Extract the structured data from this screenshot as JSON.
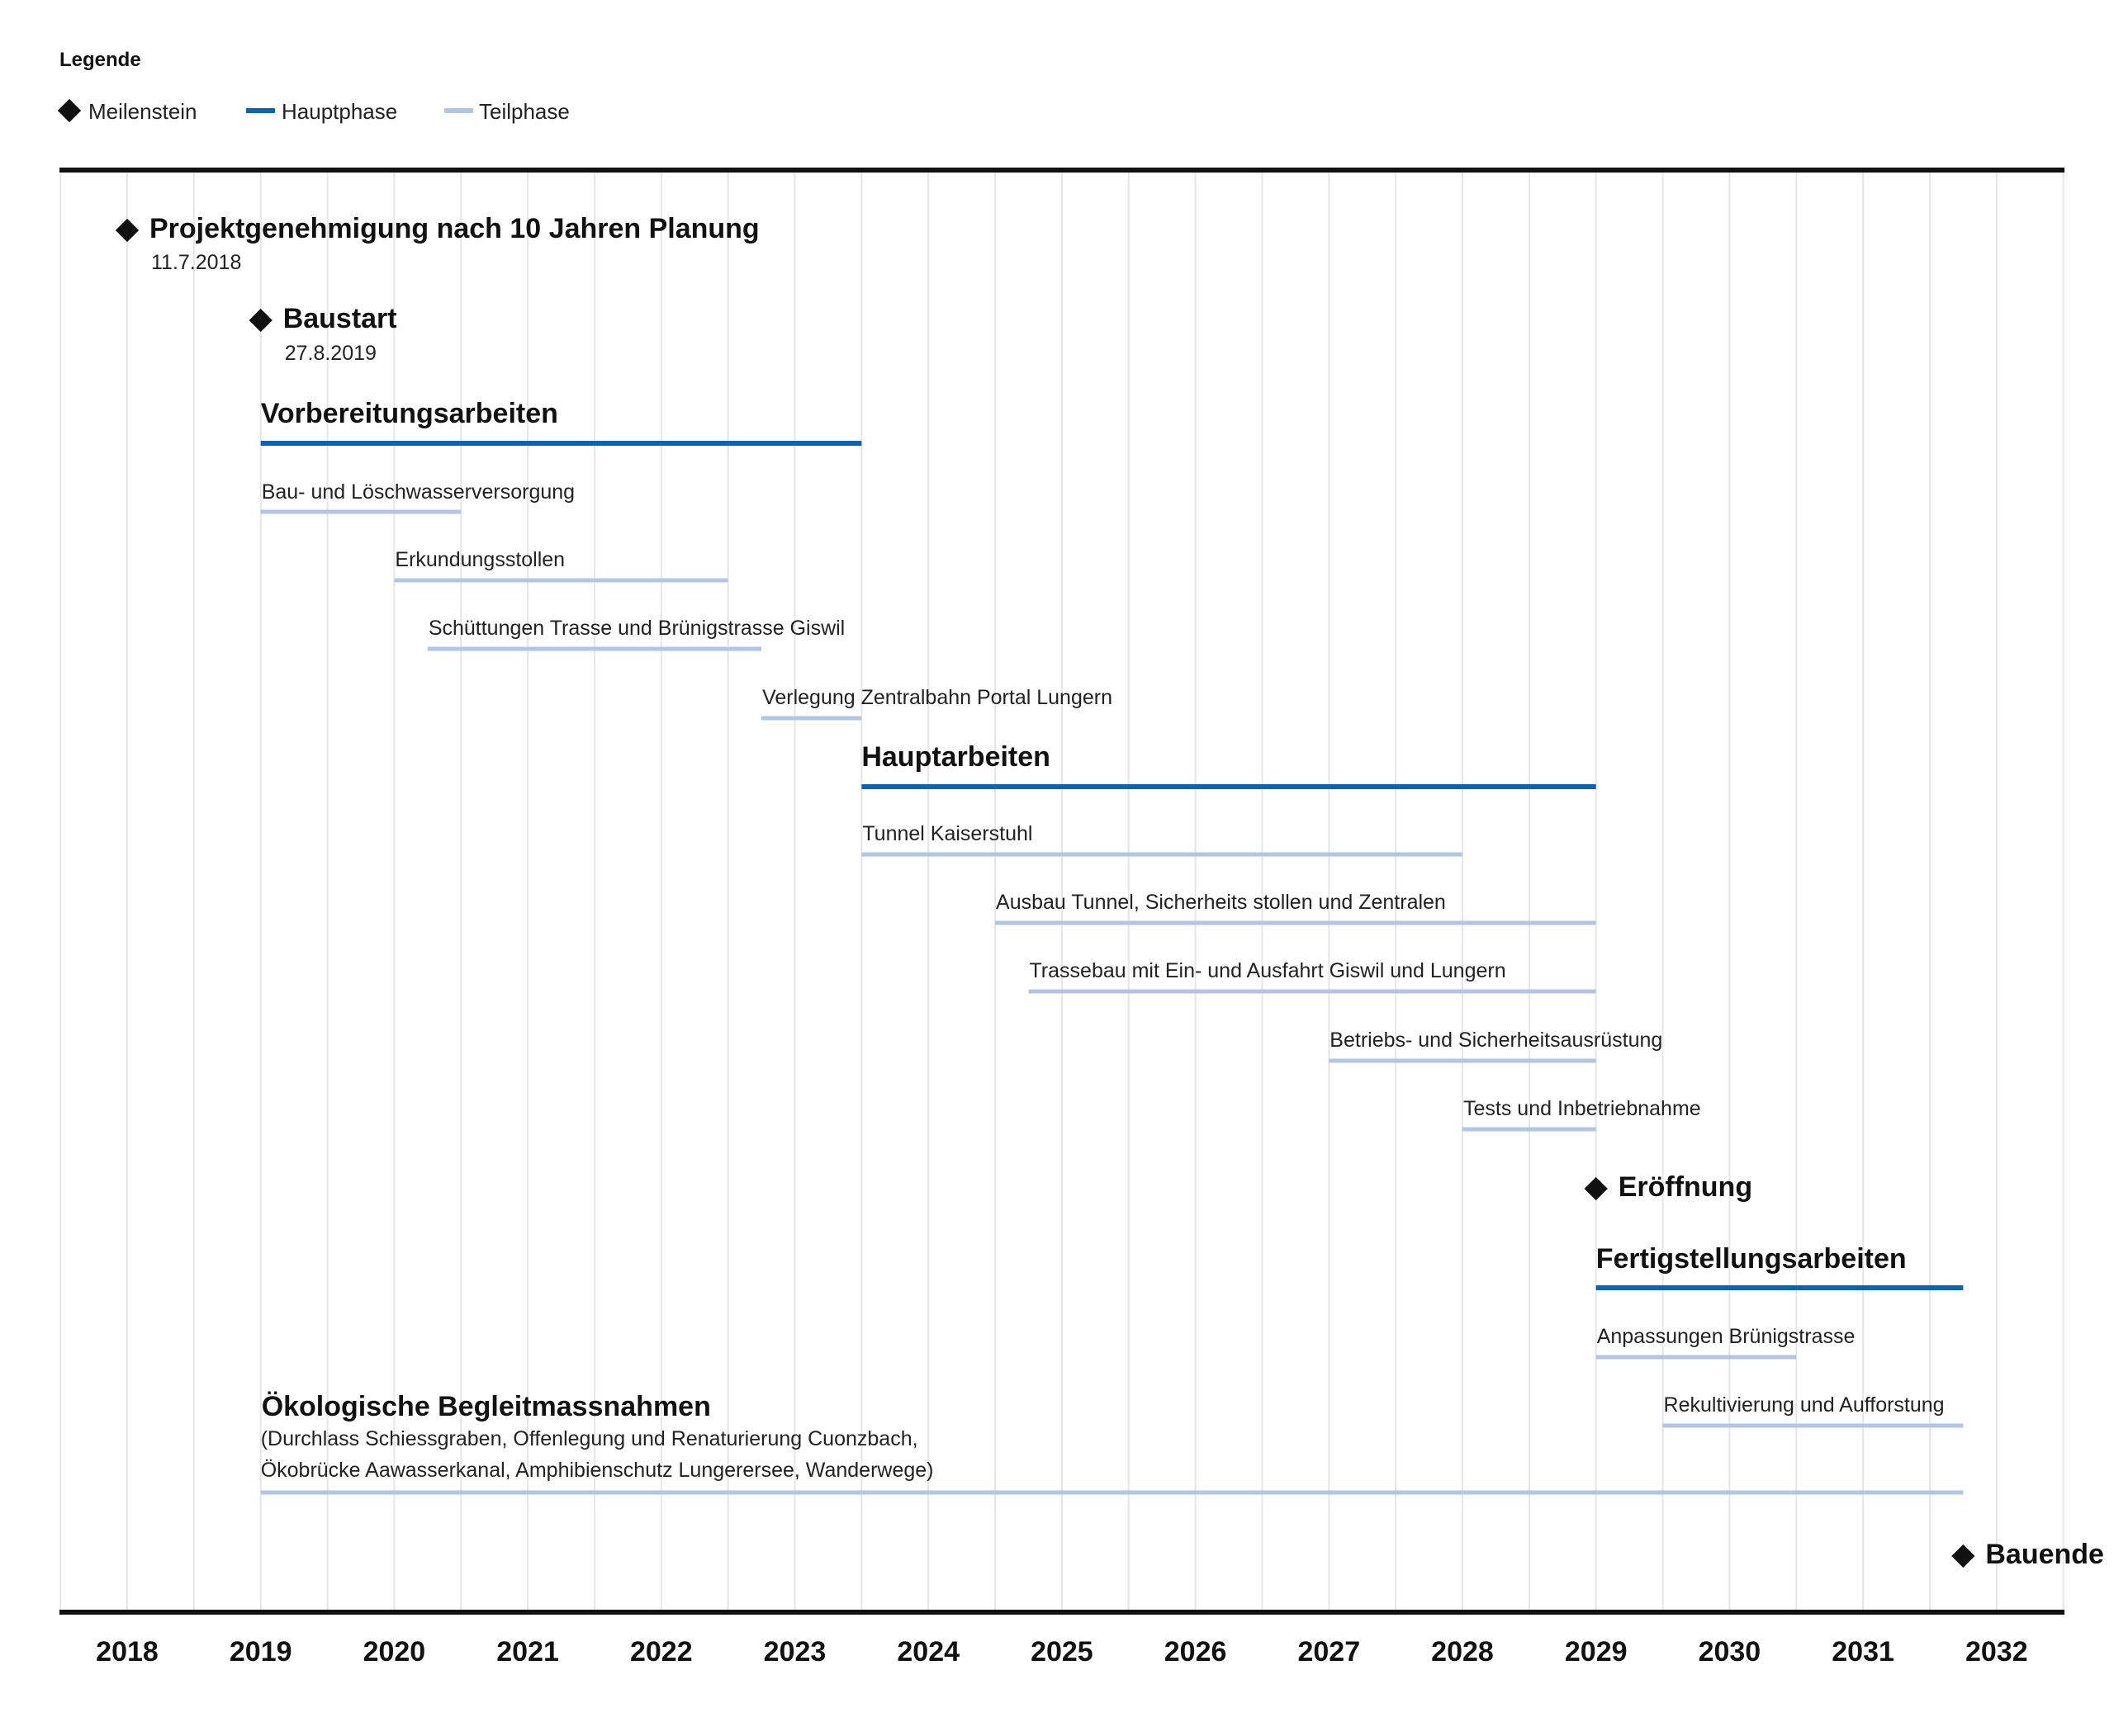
{
  "chart_data": {
    "type": "gantt",
    "legend": {
      "title": "Legende",
      "items": [
        {
          "label": "Meilenstein",
          "kind": "milestone"
        },
        {
          "label": "Hauptphase",
          "kind": "main"
        },
        {
          "label": "Teilphase",
          "kind": "sub"
        }
      ]
    },
    "colors": {
      "main": "#0d63b3",
      "sub": "#b3c5e6",
      "milestone": "#111111",
      "grid": "#e4e6ea",
      "axis": "#111111"
    },
    "x_axis": {
      "ticks": [
        2018,
        2019,
        2020,
        2021,
        2022,
        2023,
        2024,
        2025,
        2026,
        2027,
        2028,
        2029,
        2030,
        2031,
        2032
      ],
      "range": [
        2017.5,
        2032.5
      ]
    },
    "rows": [
      {
        "type": "milestone",
        "label": "Projektgenehmigung nach 10 Jahren Planung",
        "date_label": "11.7.2018",
        "date": 2018.0
      },
      {
        "type": "milestone",
        "label": "Baustart",
        "date_label": "27.8.2019",
        "date": 2019.0
      },
      {
        "type": "main",
        "label": "Vorbereitungsarbeiten",
        "start": 2019.0,
        "end": 2023.5
      },
      {
        "type": "sub",
        "label": "Bau- und Löschwasserversorgung",
        "start": 2019.0,
        "end": 2020.5
      },
      {
        "type": "sub",
        "label": "Erkundungsstollen",
        "start": 2020.0,
        "end": 2022.5
      },
      {
        "type": "sub",
        "label": "Schüttungen Trasse und Brünigstrasse Giswil",
        "start": 2020.25,
        "end": 2022.75
      },
      {
        "type": "sub",
        "label": "Verlegung Zentralbahn Portal Lungern",
        "start": 2022.75,
        "end": 2023.5
      },
      {
        "type": "main",
        "label": "Hauptarbeiten",
        "start": 2023.5,
        "end": 2029.0
      },
      {
        "type": "sub",
        "label": "Tunnel Kaiserstuhl",
        "start": 2023.5,
        "end": 2028.0
      },
      {
        "type": "sub",
        "label": "Ausbau Tunnel, Sicherheits stollen und Zentralen",
        "start": 2024.5,
        "end": 2029.0
      },
      {
        "type": "sub",
        "label": "Trassebau mit Ein- und Ausfahrt Giswil und Lungern",
        "start": 2024.75,
        "end": 2029.0
      },
      {
        "type": "sub",
        "label": "Betriebs- und Sicherheitsausrüstung",
        "start": 2027.0,
        "end": 2029.0
      },
      {
        "type": "sub",
        "label": "Tests und Inbetriebnahme",
        "start": 2028.0,
        "end": 2029.0
      },
      {
        "type": "milestone",
        "label": "Eröffnung",
        "date": 2029.0
      },
      {
        "type": "main",
        "label": "Fertigstellungsarbeiten",
        "start": 2029.0,
        "end": 2031.75
      },
      {
        "type": "sub",
        "label": "Anpassungen Brünigstrasse",
        "start": 2029.0,
        "end": 2030.5
      },
      {
        "type": "sub",
        "label": "Rekultivierung und Aufforstung",
        "start": 2029.5,
        "end": 2031.75
      },
      {
        "type": "sub",
        "label": "Ökologische Begleitmassnahmen",
        "label_style": "bold",
        "note_lines": [
          "(Durchlass Schiessgraben, Offenlegung und Renaturierung Cuonzbach,",
          "Ökobrücke Aawasserkanal, Amphibienschutz Lungerersee, Wanderwege)"
        ],
        "start": 2019.0,
        "end": 2031.75
      },
      {
        "type": "milestone",
        "label": "Bauende",
        "date": 2031.75
      }
    ]
  }
}
